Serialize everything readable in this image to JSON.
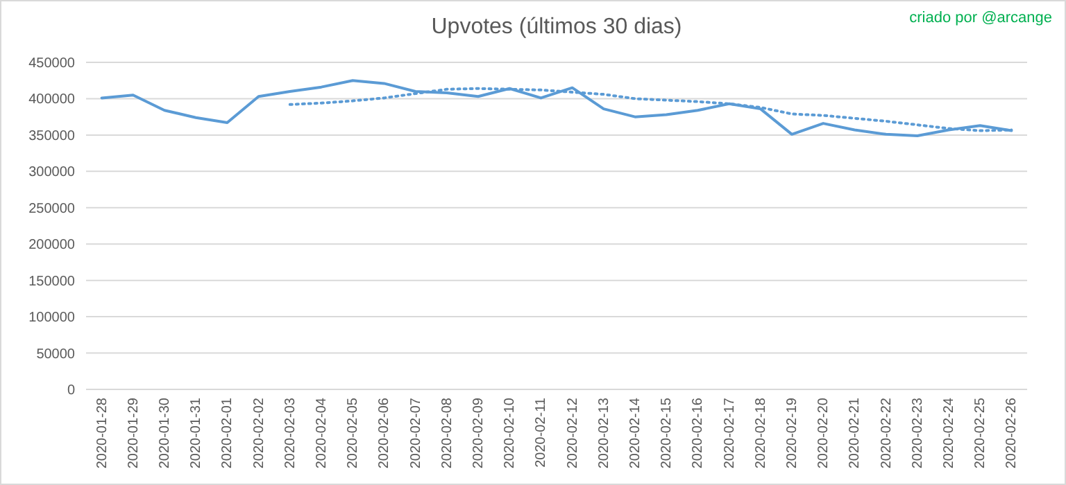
{
  "chart_data": {
    "type": "line",
    "title": "Upvotes (últimos 30 dias)",
    "annotations": [
      "criado por @arcange"
    ],
    "categories": [
      "2020-01-28",
      "2020-01-29",
      "2020-01-30",
      "2020-01-31",
      "2020-02-01",
      "2020-02-02",
      "2020-02-03",
      "2020-02-04",
      "2020-02-05",
      "2020-02-06",
      "2020-02-07",
      "2020-02-08",
      "2020-02-09",
      "2020-02-10",
      "2020-02-11",
      "2020-02-12",
      "2020-02-13",
      "2020-02-14",
      "2020-02-15",
      "2020-02-16",
      "2020-02-17",
      "2020-02-18",
      "2020-02-19",
      "2020-02-20",
      "2020-02-21",
      "2020-02-22",
      "2020-02-23",
      "2020-02-24",
      "2020-02-25",
      "2020-02-26"
    ],
    "series": [
      {
        "color": "#5b9bd5",
        "line_style": "solid",
        "values": [
          401000,
          405000,
          384000,
          374000,
          367000,
          403000,
          410000,
          416000,
          425000,
          421000,
          410000,
          408000,
          403000,
          414000,
          401000,
          415000,
          386000,
          375000,
          378000,
          384000,
          393000,
          386000,
          351000,
          366000,
          357000,
          351000,
          349000,
          357000,
          363000,
          356000
        ]
      },
      {
        "color": "#5b9bd5",
        "line_style": "dotted",
        "values": [
          null,
          null,
          null,
          null,
          null,
          null,
          392000,
          394000,
          397000,
          401000,
          407000,
          413000,
          414000,
          413000,
          412000,
          409000,
          406000,
          400000,
          398000,
          396000,
          393000,
          388000,
          379000,
          377000,
          373000,
          369000,
          364000,
          359000,
          356000,
          357000
        ]
      }
    ],
    "ylim": [
      0,
      450000
    ],
    "yticks": [
      0,
      50000,
      100000,
      150000,
      200000,
      250000,
      300000,
      350000,
      400000,
      450000
    ],
    "grid": "y",
    "marker": "none"
  }
}
